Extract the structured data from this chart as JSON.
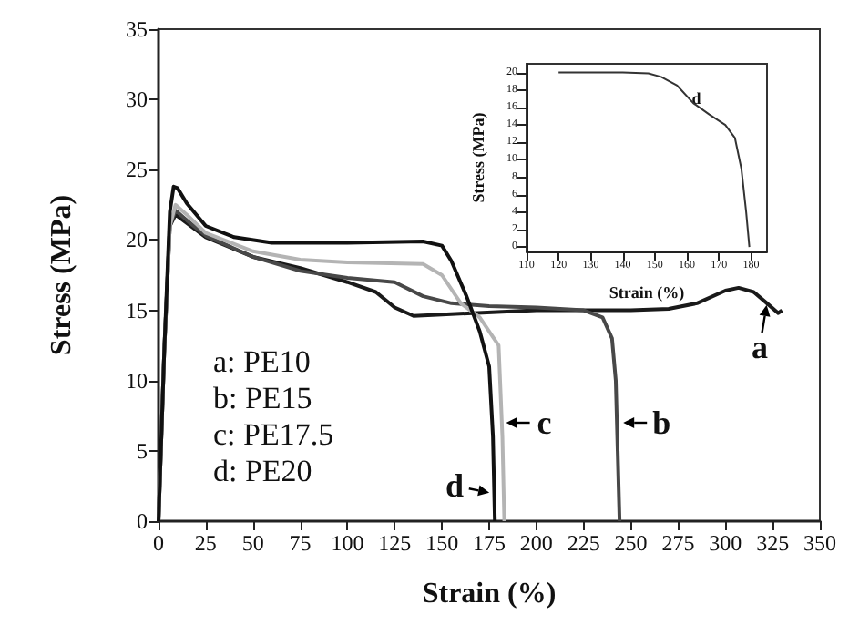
{
  "chart_data": [
    {
      "type": "line",
      "xlabel": "Strain (%)",
      "ylabel": "Stress (MPa)",
      "xlim": [
        0,
        350
      ],
      "ylim": [
        0,
        35
      ],
      "xticks": [
        0,
        25,
        50,
        75,
        100,
        125,
        150,
        175,
        200,
        225,
        250,
        275,
        300,
        325,
        350
      ],
      "yticks": [
        0,
        5,
        10,
        15,
        20,
        25,
        30,
        35
      ],
      "marker": "none",
      "line_style": "solid",
      "series": [
        {
          "color": "#1a1a1a",
          "x": [
            0,
            3,
            6,
            9,
            15,
            25,
            50,
            75,
            100,
            115,
            125,
            135,
            150,
            200,
            250,
            270,
            285,
            300,
            307,
            315,
            322,
            328,
            330
          ],
          "values": [
            0,
            12,
            21,
            21.8,
            21.2,
            20.2,
            18.8,
            18,
            17,
            16.3,
            15.2,
            14.6,
            14.7,
            15,
            15,
            15.1,
            15.5,
            16.4,
            16.6,
            16.3,
            15.5,
            14.8,
            15
          ]
        },
        {
          "color": "#484848",
          "x": [
            0,
            3,
            6,
            9,
            15,
            25,
            50,
            75,
            100,
            125,
            140,
            155,
            175,
            200,
            225,
            235,
            240,
            242,
            243,
            244
          ],
          "values": [
            0,
            12,
            21,
            22.1,
            21.4,
            20.3,
            18.8,
            17.8,
            17.3,
            17,
            16,
            15.5,
            15.3,
            15.2,
            15,
            14.5,
            13,
            10,
            5,
            0
          ]
        },
        {
          "color": "#b4b4b4",
          "x": [
            0,
            3,
            6,
            9,
            15,
            25,
            50,
            75,
            100,
            140,
            150,
            160,
            170,
            180,
            182,
            183
          ],
          "values": [
            0,
            12,
            21,
            22.5,
            21.8,
            20.5,
            19.2,
            18.6,
            18.4,
            18.3,
            17.5,
            15.5,
            14.5,
            12.5,
            6,
            0
          ]
        },
        {
          "color": "#111111",
          "x": [
            0,
            3,
            6,
            8,
            10,
            15,
            25,
            40,
            60,
            100,
            140,
            150,
            155,
            163,
            170,
            175,
            177,
            178
          ],
          "values": [
            0,
            12,
            22,
            23.8,
            23.7,
            22.6,
            21,
            20.2,
            19.8,
            19.8,
            19.9,
            19.6,
            18.5,
            16,
            13.5,
            11,
            6,
            0
          ]
        }
      ],
      "annotations": [
        "a: PE10",
        "b: PE15",
        "c: PE17.5",
        "d: PE20",
        {
          "text": "a",
          "x": 322,
          "y": 15.5
        },
        {
          "text": "b",
          "x": 245,
          "y": 7
        },
        {
          "text": "c",
          "x": 183,
          "y": 7
        },
        {
          "text": "d",
          "x": 176,
          "y": 2
        }
      ]
    },
    {
      "type": "line",
      "xlabel": "Strain (%)",
      "ylabel": "Stress (MPa)",
      "xlim": [
        110,
        185
      ],
      "ylim": [
        -0.5,
        21
      ],
      "xticks": [
        110,
        120,
        130,
        140,
        150,
        160,
        170,
        180
      ],
      "yticks": [
        0,
        2,
        4,
        6,
        8,
        10,
        12,
        14,
        16,
        18,
        20
      ],
      "marker": "none",
      "line_style": "solid",
      "series": [
        {
          "color": "#333333",
          "x": [
            120,
            140,
            148,
            152,
            157,
            162,
            167,
            172,
            175,
            177,
            178.5,
            179.5
          ],
          "values": [
            20,
            20,
            19.9,
            19.5,
            18.5,
            16.5,
            15.2,
            14,
            12.5,
            9,
            4,
            0
          ]
        }
      ],
      "annotations": [
        {
          "text": "d",
          "x": 163,
          "y": 17
        }
      ]
    }
  ]
}
